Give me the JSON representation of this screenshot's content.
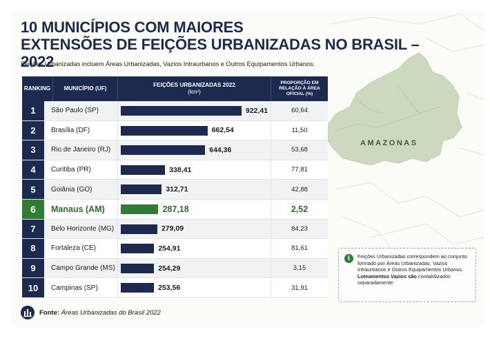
{
  "title_line1": "10 MUNICÍPIOS COM MAIORES",
  "title_line2": "EXTENSÕES DE FEIÇÕES URBANIZADAS NO BRASIL – 2022",
  "subtitle": "Feições Urbanizadas incluem Áreas Urbanizadas, Vazios Intraurbanos e Outros Equipamentos Urbanos.",
  "table_headers": {
    "ranking": "RANKING",
    "municipio": "MUNICÍPIO (UF)",
    "feicoes": "FEIÇÕES URBANIZADAS 2022",
    "feicoes_unit": "(km²)",
    "proporcao_1": "PROPORÇÃO EM",
    "proporcao_2": "RELAÇÃO À ÁREA",
    "proporcao_3": "OFICIAL (%)"
  },
  "chart_data": {
    "type": "bar",
    "orientation": "horizontal",
    "title": "10 MUNICÍPIOS COM MAIORES EXTENSÕES DE FEIÇÕES URBANIZADAS NO BRASIL – 2022",
    "xlabel": "FEIÇÕES URBANIZADAS 2022 (km²)",
    "ylabel": "",
    "xlim": [
      0,
      922.41
    ],
    "highlight_index": 5,
    "highlight_color": "#2f7d32",
    "bar_color": "#1b2a4e",
    "rows": [
      {
        "rank": "1",
        "name": "São Paulo (SP)",
        "value": 922.41,
        "value_label": "922,41",
        "share_label": "60,64"
      },
      {
        "rank": "2",
        "name": "Brasília (DF)",
        "value": 662.54,
        "value_label": "662,54",
        "share_label": "11,50"
      },
      {
        "rank": "3",
        "name": "Rio de Janeiro (RJ)",
        "value": 644.36,
        "value_label": "644,36",
        "share_label": "53,68"
      },
      {
        "rank": "4",
        "name": "Curitiba (PR)",
        "value": 338.41,
        "value_label": "338,41",
        "share_label": "77,81"
      },
      {
        "rank": "5",
        "name": "Goiânia (GO)",
        "value": 312.71,
        "value_label": "312,71",
        "share_label": "42,88"
      },
      {
        "rank": "6",
        "name": "Manaus (AM)",
        "value": 287.18,
        "value_label": "287,18",
        "share_label": "2,52"
      },
      {
        "rank": "7",
        "name": "Belo Horizonte (MG)",
        "value": 279.09,
        "value_label": "279,09",
        "share_label": "84,23"
      },
      {
        "rank": "8",
        "name": "Fortaleza (CE)",
        "value": 254.91,
        "value_label": "254,91",
        "share_label": "81,61"
      },
      {
        "rank": "9",
        "name": "Campo Grande (MS)",
        "value": 254.29,
        "value_label": "254,29",
        "share_label": "3,15"
      },
      {
        "rank": "10",
        "name": "Campinas (SP)",
        "value": 253.56,
        "value_label": "253,56",
        "share_label": "31,91"
      }
    ]
  },
  "map": {
    "region_label": "AMAZONAS"
  },
  "note": {
    "icon": "info-icon",
    "text": "Feições Urbanizadas correspondem ao conjunto formado por Áreas Urbanizadas, Vazios Intraurbanos e Outros Equipamentos Urbanos.",
    "bold_text": "Loteamentos Vazios são",
    "italic_text": "contabilizados separadamente."
  },
  "source": {
    "icon": "building-icon",
    "label": "Fonte:",
    "text": "Áreas Urbanizadas do Brasil 2022"
  }
}
